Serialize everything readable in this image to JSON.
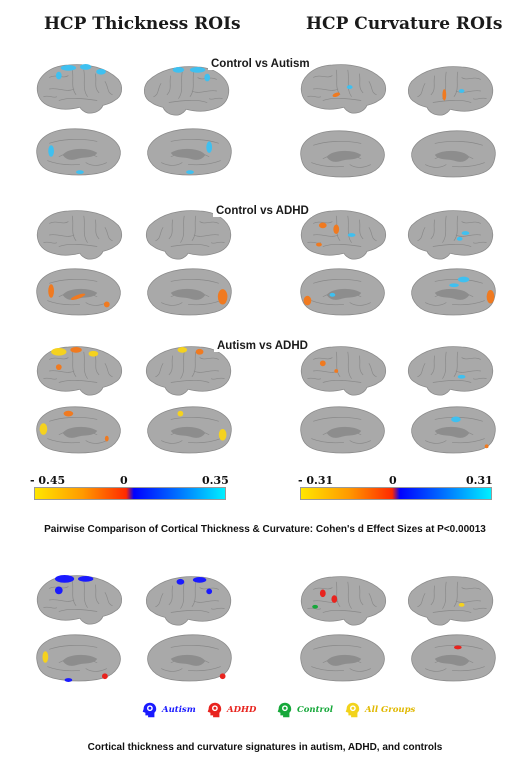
{
  "titles": {
    "left": "HCP Thickness ROIs",
    "right": "HCP Curvature ROIs"
  },
  "comparisons": [
    "Control vs Autism",
    "Control vs ADHD",
    "Autism vs ADHD"
  ],
  "thickness_colorbar": {
    "min_label": "- 0.45",
    "zero_label": "0",
    "max_label": "0.35"
  },
  "curvature_colorbar": {
    "min_label": "- 0.31",
    "zero_label": "0",
    "max_label": "0.31"
  },
  "caption_top": "Pairwise Comparison of Cortical Thickness & Curvature: Cohen's d Effect Sizes at P<0.00013",
  "legend": [
    {
      "label": "Autism",
      "color": "#1a1aff"
    },
    {
      "label": "ADHD",
      "color": "#e8231e"
    },
    {
      "label": "Control",
      "color": "#16a83a"
    },
    {
      "label": "All Groups",
      "color": "#f2d31b"
    }
  ],
  "caption_bottom": "Cortical thickness and curvature signatures in autism, ADHD, and controls",
  "colors": {
    "brain": "#a9a9a9",
    "negative": "#e8571e",
    "positive": "#1ea8e8"
  }
}
